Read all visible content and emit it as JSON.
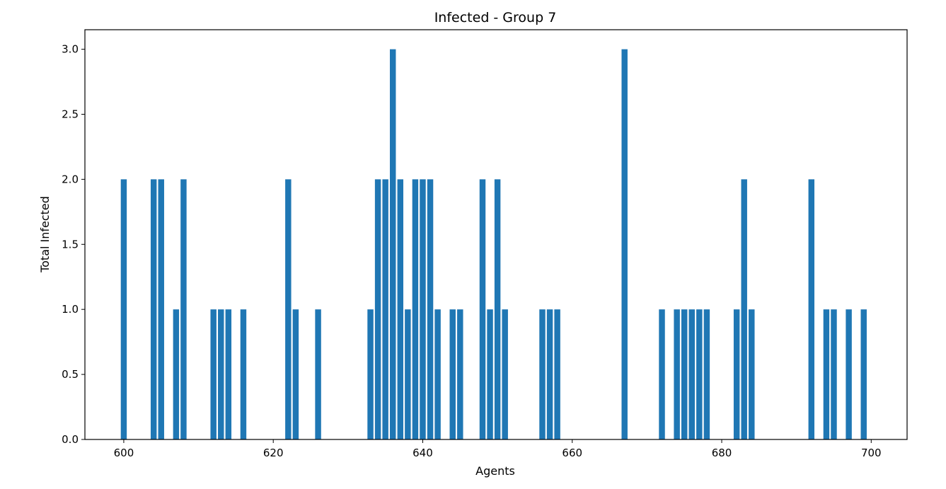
{
  "chart_data": {
    "type": "bar",
    "title": "Infected - Group 7",
    "xlabel": "Agents",
    "ylabel": "Total Infected",
    "xlim": [
      594.8,
      704.8
    ],
    "ylim": [
      0,
      3.15
    ],
    "xticks": [
      "600",
      "620",
      "640",
      "660",
      "680",
      "700"
    ],
    "yticks": [
      "0.0",
      "0.5",
      "1.0",
      "1.5",
      "2.0",
      "2.5",
      "3.0"
    ],
    "grid": false,
    "bar_color": "#1f77b4",
    "x": [
      600,
      604,
      605,
      607,
      608,
      612,
      613,
      614,
      616,
      622,
      623,
      626,
      633,
      634,
      635,
      636,
      637,
      638,
      639,
      640,
      641,
      642,
      644,
      645,
      648,
      649,
      650,
      651,
      656,
      657,
      658,
      667,
      672,
      674,
      675,
      676,
      677,
      678,
      682,
      683,
      684,
      692,
      694,
      695,
      697,
      699
    ],
    "values": [
      2,
      2,
      2,
      1,
      2,
      1,
      1,
      1,
      1,
      2,
      1,
      1,
      1,
      2,
      2,
      3,
      2,
      1,
      2,
      2,
      2,
      1,
      1,
      1,
      2,
      1,
      2,
      1,
      1,
      1,
      1,
      3,
      1,
      1,
      1,
      1,
      1,
      1,
      1,
      2,
      1,
      2,
      1,
      1,
      1,
      1
    ]
  }
}
